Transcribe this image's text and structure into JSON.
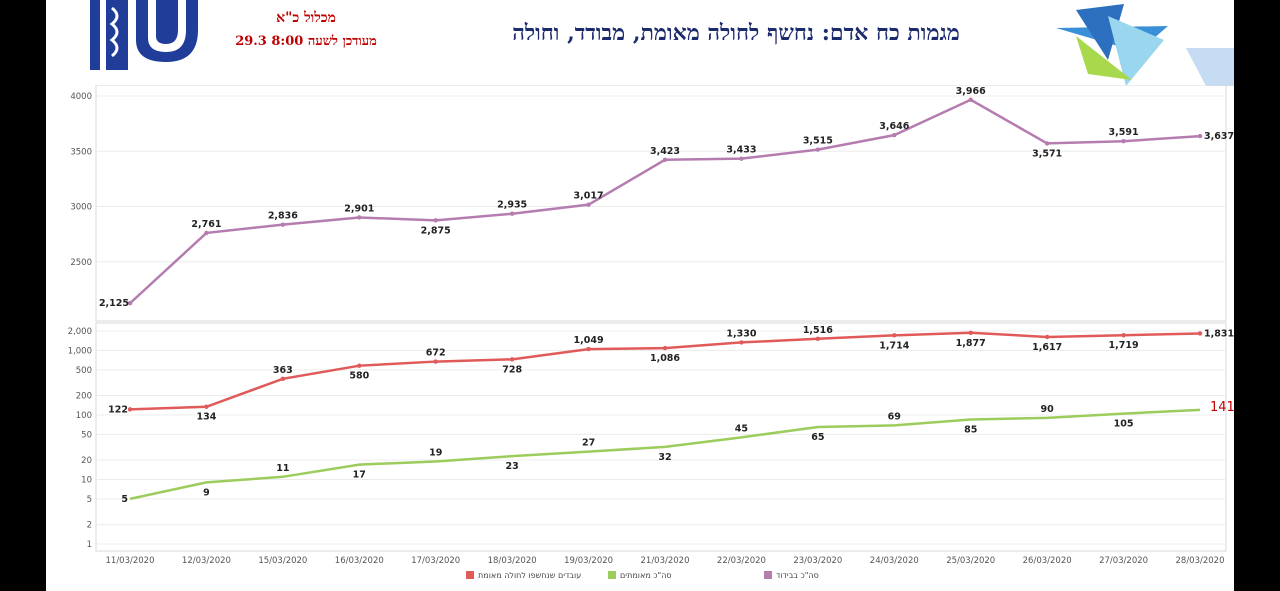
{
  "header": {
    "title": "מגמות כח אדם: נחשף לחולה מאומת, מבודד, וחולה",
    "unit": "מכלול כ\"א",
    "updated": "מעודכן לשעה  8:00  29.3"
  },
  "colors": {
    "isolated": "#b57cb0",
    "exposed": "#e05a5a",
    "confirmed": "#9ccc5c",
    "title": "#1c2a6e",
    "annotation": "#c00000"
  },
  "chart_data": [
    {
      "type": "line",
      "categories": [
        "11/03/2020",
        "12/03/2020",
        "15/03/2020",
        "16/03/2020",
        "17/03/2020",
        "18/03/2020",
        "19/03/2020",
        "21/03/2020",
        "22/03/2020",
        "23/03/2020",
        "24/03/2020",
        "25/03/2020",
        "26/03/2020",
        "27/03/2020",
        "28/03/2020"
      ],
      "yticks": [
        "4000",
        "3500",
        "3000",
        "2500"
      ],
      "ylim": [
        2100,
        4000
      ],
      "series": [
        {
          "name": "סה\"כ בבידוד",
          "values": [
            2125,
            2761,
            2836,
            2901,
            2875,
            2935,
            3017,
            3423,
            3433,
            3515,
            3646,
            3966,
            3571,
            3591,
            3637
          ],
          "labels": [
            "2,125",
            "2,761",
            "2,836",
            "2,901",
            "2,875",
            "2,935",
            "3,017",
            "3,423",
            "3,433",
            "3,515",
            "3,646",
            "3,966",
            "3,571",
            "3,591",
            "3,637"
          ]
        }
      ]
    },
    {
      "type": "line",
      "scale": "log",
      "categories": [
        "11/03/2020",
        "12/03/2020",
        "15/03/2020",
        "16/03/2020",
        "17/03/2020",
        "18/03/2020",
        "19/03/2020",
        "21/03/2020",
        "22/03/2020",
        "23/03/2020",
        "24/03/2020",
        "25/03/2020",
        "26/03/2020",
        "27/03/2020",
        "28/03/2020"
      ],
      "yticks": [
        "2,000",
        "1,000",
        "500",
        "200",
        "100",
        "50",
        "20",
        "10",
        "5",
        "2",
        "1"
      ],
      "ylim": [
        1,
        2000
      ],
      "series": [
        {
          "name": "עובדים שנחשפו לחולה מאומת",
          "values": [
            122,
            134,
            363,
            580,
            672,
            728,
            1049,
            1086,
            1330,
            1516,
            1714,
            1877,
            1617,
            1719,
            1831
          ],
          "labels": [
            "122",
            "134",
            "363",
            "580",
            "672",
            "728",
            "1,049",
            "1,086",
            "1,330",
            "1,516",
            "1,714",
            "1,877",
            "1,617",
            "1,719",
            "1,831"
          ]
        },
        {
          "name": "סה\"כ מאומתים",
          "values": [
            5,
            9,
            11,
            17,
            19,
            23,
            27,
            32,
            45,
            65,
            69,
            85,
            90,
            105,
            120
          ],
          "labels": [
            "5",
            "9",
            "11",
            "17",
            "19",
            "23",
            "27",
            "32",
            "45",
            "65",
            "69",
            "85",
            "90",
            "105",
            ""
          ]
        }
      ],
      "annotation": "141"
    }
  ],
  "legend": [
    {
      "label": "עובדים שנחשפו לחולה מאומת",
      "color": "#e05a5a"
    },
    {
      "label": "סה\"כ מאומתים",
      "color": "#9ccc5c"
    },
    {
      "label": "סה\"כ בבידוד",
      "color": "#b57cb0"
    }
  ]
}
